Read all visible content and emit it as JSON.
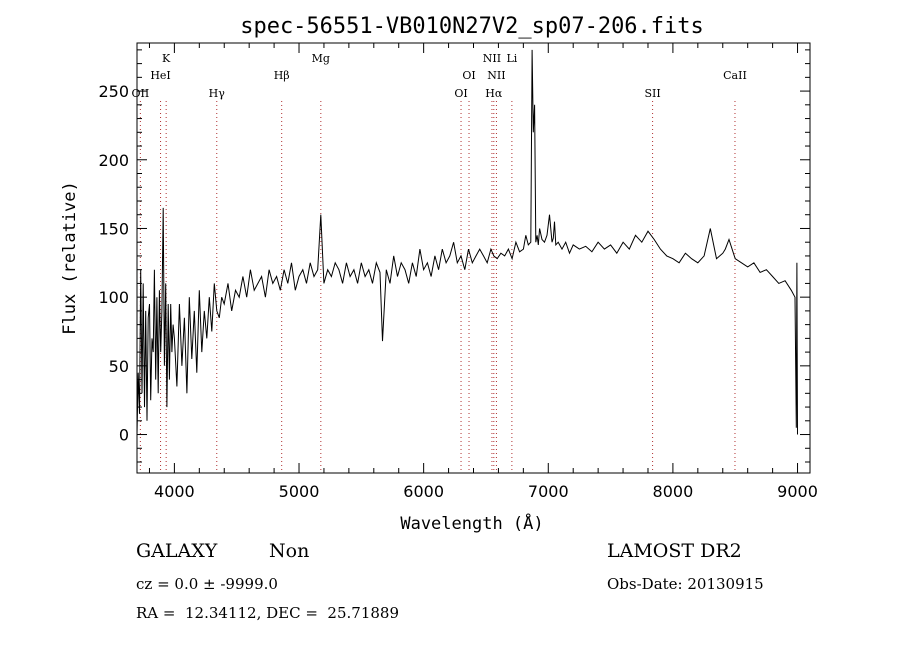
{
  "chart_data": {
    "type": "line",
    "title": "spec-56551-VB010N27V2_sp07-206.fits",
    "xlabel": "Wavelength (Å)",
    "ylabel": "Flux (relative)",
    "xlim": [
      3700,
      9100
    ],
    "ylim": [
      -28,
      285
    ],
    "xticks": [
      4000,
      5000,
      6000,
      7000,
      8000,
      9000
    ],
    "yticks": [
      0,
      50,
      100,
      150,
      200,
      250
    ],
    "xtick_labels": [
      "4000",
      "5000",
      "6000",
      "7000",
      "8000",
      "9000"
    ],
    "ytick_labels": [
      "0",
      "50",
      "100",
      "150",
      "200",
      "250"
    ],
    "grid": false,
    "line_color": "#000000",
    "marker_color": "#b03030",
    "lines": [
      {
        "name": "OII",
        "wave": 3727,
        "row": 3
      },
      {
        "name": "K",
        "wave": 3934,
        "row": 1
      },
      {
        "name": "HeI",
        "wave": 3889,
        "row": 2
      },
      {
        "name": "Hγ",
        "wave": 4340,
        "row": 3
      },
      {
        "name": "Hβ",
        "wave": 4861,
        "row": 2
      },
      {
        "name": "Mg",
        "wave": 5175,
        "row": 1
      },
      {
        "name": "OI",
        "wave": 6300,
        "row": 3
      },
      {
        "name": "OI",
        "wave": 6364,
        "row": 2
      },
      {
        "name": "NII",
        "wave": 6548,
        "row": 1
      },
      {
        "name": "NII",
        "wave": 6584,
        "row": 2
      },
      {
        "name": "Hα",
        "wave": 6563,
        "row": 3
      },
      {
        "name": "Li",
        "wave": 6708,
        "row": 1
      },
      {
        "name": "SII",
        "wave": 7837,
        "row": 3
      },
      {
        "name": "CaII",
        "wave": 8498,
        "row": 2
      }
    ],
    "spectrum": {
      "x": [
        3700,
        3710,
        3720,
        3730,
        3740,
        3750,
        3760,
        3770,
        3780,
        3790,
        3800,
        3810,
        3820,
        3830,
        3840,
        3850,
        3860,
        3870,
        3880,
        3890,
        3900,
        3910,
        3920,
        3930,
        3940,
        3950,
        3960,
        3970,
        3980,
        3990,
        4000,
        4020,
        4040,
        4060,
        4080,
        4100,
        4120,
        4140,
        4160,
        4180,
        4200,
        4220,
        4240,
        4260,
        4280,
        4300,
        4320,
        4340,
        4360,
        4380,
        4400,
        4430,
        4460,
        4490,
        4520,
        4550,
        4580,
        4610,
        4640,
        4670,
        4700,
        4730,
        4760,
        4790,
        4820,
        4850,
        4880,
        4910,
        4940,
        4970,
        5000,
        5030,
        5060,
        5090,
        5120,
        5150,
        5175,
        5200,
        5230,
        5260,
        5290,
        5320,
        5350,
        5380,
        5410,
        5440,
        5470,
        5500,
        5530,
        5560,
        5590,
        5620,
        5650,
        5670,
        5700,
        5730,
        5760,
        5790,
        5820,
        5850,
        5880,
        5910,
        5940,
        5970,
        6000,
        6030,
        6060,
        6090,
        6120,
        6150,
        6180,
        6210,
        6240,
        6270,
        6300,
        6330,
        6360,
        6390,
        6420,
        6450,
        6480,
        6510,
        6540,
        6563,
        6590,
        6620,
        6650,
        6680,
        6710,
        6740,
        6770,
        6800,
        6820,
        6840,
        6860,
        6870,
        6880,
        6890,
        6900,
        6910,
        6920,
        6930,
        6950,
        6970,
        6990,
        7010,
        7030,
        7040,
        7050,
        7060,
        7080,
        7110,
        7140,
        7170,
        7200,
        7250,
        7300,
        7350,
        7400,
        7450,
        7500,
        7550,
        7600,
        7650,
        7700,
        7750,
        7800,
        7850,
        7900,
        7950,
        8000,
        8050,
        8100,
        8150,
        8200,
        8250,
        8300,
        8350,
        8400,
        8420,
        8450,
        8500,
        8550,
        8600,
        8650,
        8700,
        8750,
        8800,
        8850,
        8900,
        8950,
        8980,
        8990,
        8995,
        9000
      ],
      "y": [
        0,
        45,
        15,
        120,
        30,
        110,
        20,
        90,
        10,
        85,
        95,
        25,
        70,
        60,
        120,
        40,
        100,
        30,
        105,
        60,
        90,
        165,
        50,
        110,
        20,
        95,
        40,
        95,
        60,
        80,
        70,
        35,
        95,
        50,
        85,
        30,
        100,
        55,
        90,
        45,
        105,
        60,
        90,
        70,
        100,
        75,
        110,
        90,
        85,
        100,
        95,
        110,
        90,
        105,
        100,
        115,
        100,
        120,
        105,
        110,
        115,
        100,
        120,
        110,
        115,
        105,
        120,
        110,
        125,
        105,
        115,
        120,
        110,
        125,
        115,
        120,
        160,
        110,
        120,
        115,
        125,
        120,
        110,
        125,
        115,
        120,
        110,
        125,
        115,
        120,
        110,
        125,
        118,
        68,
        120,
        110,
        130,
        115,
        125,
        120,
        110,
        125,
        115,
        135,
        120,
        125,
        115,
        130,
        120,
        135,
        125,
        130,
        140,
        125,
        130,
        120,
        135,
        125,
        130,
        135,
        130,
        125,
        135,
        130,
        128,
        132,
        130,
        135,
        128,
        140,
        133,
        135,
        145,
        138,
        140,
        280,
        220,
        240,
        140,
        145,
        138,
        150,
        142,
        140,
        145,
        160,
        140,
        143,
        155,
        138,
        140,
        135,
        140,
        132,
        138,
        135,
        137,
        133,
        140,
        135,
        138,
        132,
        140,
        135,
        145,
        140,
        148,
        142,
        135,
        130,
        128,
        125,
        132,
        128,
        125,
        130,
        150,
        128,
        132,
        135,
        142,
        128,
        125,
        122,
        125,
        118,
        120,
        115,
        110,
        112,
        105,
        100,
        5,
        125,
        0
      ]
    }
  },
  "info": {
    "class_label": "GALAXY",
    "subclass_label": "Non",
    "survey_label": "LAMOST DR2",
    "cz_text": "cz = 0.0 ± -9999.0",
    "obsdate_text": "Obs-Date: 20130915",
    "radec_text": "RA =  12.34112, DEC =  25.71889"
  }
}
